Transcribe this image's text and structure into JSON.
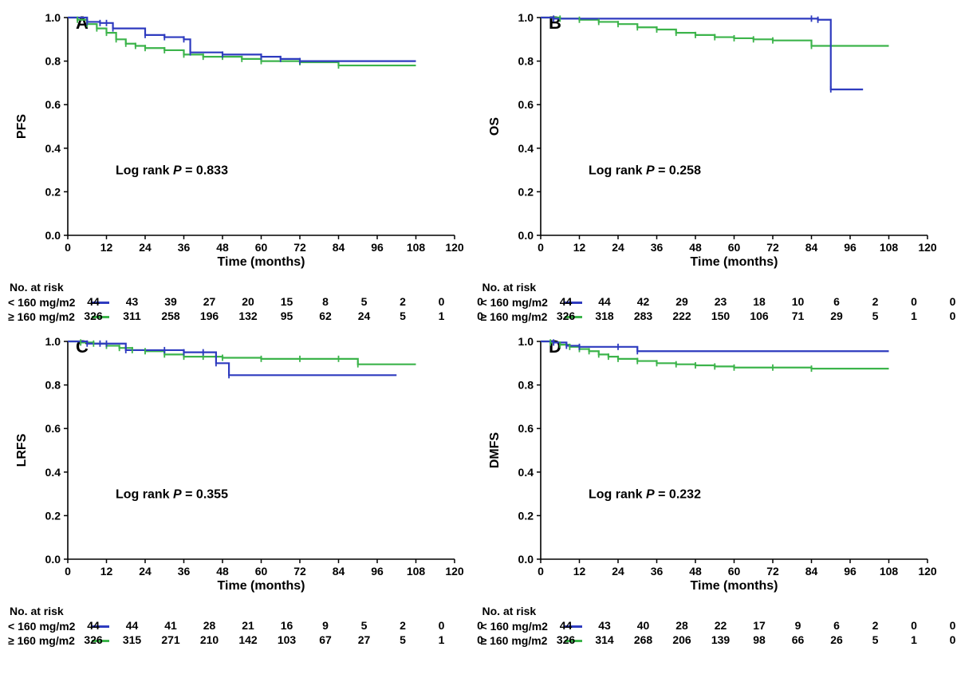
{
  "global": {
    "xlabel": "Time (months)",
    "xticks": [
      0,
      12,
      24,
      36,
      48,
      60,
      72,
      84,
      96,
      108,
      120
    ],
    "yticks": [
      0.0,
      0.2,
      0.4,
      0.6,
      0.8,
      1.0
    ],
    "ylim": [
      0,
      1
    ],
    "xlim": [
      0,
      120
    ],
    "series1_label": "< 160 mg/m2",
    "series2_label": "≥ 160 mg/m2",
    "series1_color": "#2e3bbf",
    "series2_color": "#3cb44b",
    "text_color": "#000000",
    "background_color": "#ffffff",
    "line_width": 2.2,
    "tick_fontsize": 14,
    "label_fontsize": 16,
    "panel_letter_fontsize": 22,
    "annot_fontsize": 16,
    "annot_weight": "bold",
    "risk_title": "No. at risk"
  },
  "panels": [
    {
      "letter": "A",
      "ylabel": "PFS",
      "annotation": "Log rank P = 0.833",
      "series1_points": [
        [
          0,
          1.0
        ],
        [
          6,
          0.98
        ],
        [
          10,
          0.975
        ],
        [
          12,
          0.975
        ],
        [
          14,
          0.95
        ],
        [
          24,
          0.92
        ],
        [
          30,
          0.91
        ],
        [
          36,
          0.9
        ],
        [
          38,
          0.84
        ],
        [
          48,
          0.83
        ],
        [
          60,
          0.82
        ],
        [
          66,
          0.81
        ],
        [
          72,
          0.8
        ],
        [
          108,
          0.8
        ]
      ],
      "series2_points": [
        [
          0,
          1.0
        ],
        [
          3,
          0.99
        ],
        [
          6,
          0.97
        ],
        [
          9,
          0.95
        ],
        [
          12,
          0.93
        ],
        [
          15,
          0.9
        ],
        [
          18,
          0.88
        ],
        [
          21,
          0.87
        ],
        [
          24,
          0.86
        ],
        [
          30,
          0.85
        ],
        [
          36,
          0.83
        ],
        [
          42,
          0.82
        ],
        [
          48,
          0.82
        ],
        [
          54,
          0.81
        ],
        [
          60,
          0.8
        ],
        [
          72,
          0.795
        ],
        [
          84,
          0.78
        ],
        [
          108,
          0.78
        ]
      ],
      "risk": {
        "s1": [
          44,
          43,
          39,
          27,
          20,
          15,
          8,
          5,
          2,
          0,
          0
        ],
        "s2": [
          326,
          311,
          258,
          196,
          132,
          95,
          62,
          24,
          5,
          1,
          0
        ]
      }
    },
    {
      "letter": "B",
      "ylabel": "OS",
      "annotation": "Log rank P = 0.258",
      "series1_points": [
        [
          0,
          1.0
        ],
        [
          4,
          0.995
        ],
        [
          84,
          0.995
        ],
        [
          86,
          0.99
        ],
        [
          90,
          0.67
        ],
        [
          100,
          0.67
        ]
      ],
      "series2_points": [
        [
          0,
          1.0
        ],
        [
          6,
          0.995
        ],
        [
          12,
          0.99
        ],
        [
          18,
          0.98
        ],
        [
          24,
          0.97
        ],
        [
          30,
          0.955
        ],
        [
          36,
          0.945
        ],
        [
          42,
          0.93
        ],
        [
          48,
          0.92
        ],
        [
          54,
          0.91
        ],
        [
          60,
          0.905
        ],
        [
          66,
          0.9
        ],
        [
          72,
          0.895
        ],
        [
          84,
          0.87
        ],
        [
          108,
          0.87
        ]
      ],
      "risk": {
        "s1": [
          44,
          44,
          42,
          29,
          23,
          18,
          10,
          6,
          2,
          0,
          0
        ],
        "s2": [
          326,
          318,
          283,
          222,
          150,
          106,
          71,
          29,
          5,
          1,
          0
        ]
      }
    },
    {
      "letter": "C",
      "ylabel": "LRFS",
      "annotation": "Log rank P = 0.355",
      "series1_points": [
        [
          0,
          1.0
        ],
        [
          6,
          0.99
        ],
        [
          10,
          0.99
        ],
        [
          12,
          0.99
        ],
        [
          18,
          0.96
        ],
        [
          30,
          0.96
        ],
        [
          36,
          0.95
        ],
        [
          42,
          0.95
        ],
        [
          46,
          0.9
        ],
        [
          50,
          0.845
        ],
        [
          102,
          0.845
        ]
      ],
      "series2_points": [
        [
          0,
          1.0
        ],
        [
          4,
          0.995
        ],
        [
          8,
          0.99
        ],
        [
          12,
          0.98
        ],
        [
          16,
          0.97
        ],
        [
          20,
          0.96
        ],
        [
          24,
          0.955
        ],
        [
          30,
          0.94
        ],
        [
          36,
          0.93
        ],
        [
          42,
          0.93
        ],
        [
          48,
          0.925
        ],
        [
          60,
          0.92
        ],
        [
          72,
          0.92
        ],
        [
          84,
          0.92
        ],
        [
          90,
          0.895
        ],
        [
          108,
          0.895
        ]
      ],
      "risk": {
        "s1": [
          44,
          44,
          41,
          28,
          21,
          16,
          9,
          5,
          2,
          0,
          0
        ],
        "s2": [
          326,
          315,
          271,
          210,
          142,
          103,
          67,
          27,
          5,
          1,
          0
        ]
      }
    },
    {
      "letter": "D",
      "ylabel": "DMFS",
      "annotation": "Log rank P = 0.232",
      "series1_points": [
        [
          0,
          1.0
        ],
        [
          4,
          0.995
        ],
        [
          8,
          0.98
        ],
        [
          12,
          0.975
        ],
        [
          24,
          0.975
        ],
        [
          30,
          0.955
        ],
        [
          108,
          0.955
        ]
      ],
      "series2_points": [
        [
          0,
          1.0
        ],
        [
          3,
          0.995
        ],
        [
          6,
          0.985
        ],
        [
          9,
          0.975
        ],
        [
          12,
          0.965
        ],
        [
          15,
          0.955
        ],
        [
          18,
          0.94
        ],
        [
          21,
          0.93
        ],
        [
          24,
          0.92
        ],
        [
          30,
          0.91
        ],
        [
          36,
          0.9
        ],
        [
          42,
          0.895
        ],
        [
          48,
          0.89
        ],
        [
          54,
          0.885
        ],
        [
          60,
          0.88
        ],
        [
          72,
          0.88
        ],
        [
          84,
          0.875
        ],
        [
          108,
          0.875
        ]
      ],
      "risk": {
        "s1": [
          44,
          43,
          40,
          28,
          22,
          17,
          9,
          6,
          2,
          0,
          0
        ],
        "s2": [
          326,
          314,
          268,
          206,
          139,
          98,
          66,
          26,
          5,
          1,
          0
        ]
      }
    }
  ]
}
